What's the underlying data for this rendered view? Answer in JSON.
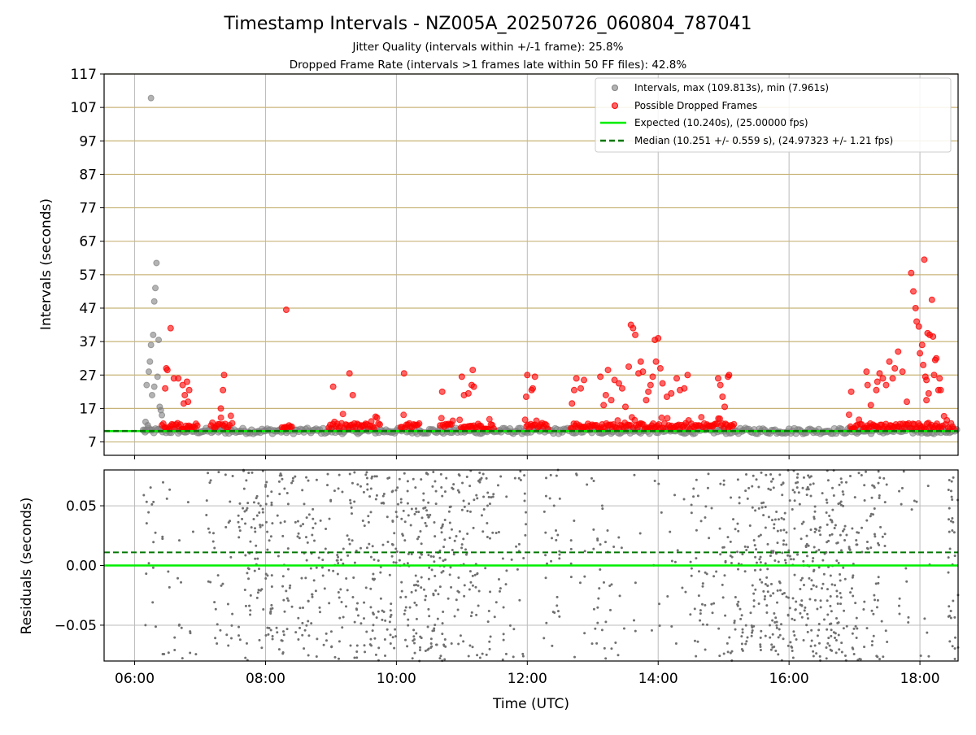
{
  "title": "Timestamp Intervals - NZ005A_20250726_060804_787041",
  "subtitle1": "Jitter Quality (intervals within +/-1 frame): 25.8%",
  "subtitle2": "Dropped Frame Rate (intervals >1 frames late within 50 FF files): 42.8%",
  "colors": {
    "intervals": "#808080",
    "dropped": "#ff0000",
    "expected": "#00ee00",
    "median": "#007700",
    "grid_major": "#c8b478",
    "grid_minor": "#bbbbbb"
  },
  "chart_data": [
    {
      "type": "scatter",
      "ylabel": "Intervals (seconds)",
      "yticks": [
        "7",
        "17",
        "27",
        "37",
        "47",
        "57",
        "67",
        "77",
        "87",
        "97",
        "107",
        "117"
      ],
      "ylim": [
        3,
        117
      ],
      "xlim": [
        "05:32",
        "18:35"
      ],
      "grid": true,
      "legend_position": "top-right",
      "legend": [
        "Intervals, max (109.813s), min (7.961s)",
        "Possible Dropped Frames",
        "Expected (10.240s), (25.00000 fps)",
        "Median (10.251 +/- 0.559 s), (24.97323 +/- 1.21 fps)"
      ],
      "series": [
        {
          "name": "Intervals, max (109.813s), min (7.961s)",
          "points": [
            [
              "06:15",
              109.8
            ],
            [
              "06:20",
              60.5
            ],
            [
              "06:19",
              53.0
            ],
            [
              "06:18",
              49.0
            ],
            [
              "06:17",
              39.0
            ],
            [
              "06:15",
              36.0
            ],
            [
              "06:14",
              31.0
            ],
            [
              "06:11",
              24.0
            ],
            [
              "06:13",
              28.0
            ],
            [
              "06:18",
              23.5
            ],
            [
              "06:16",
              21.0
            ],
            [
              "06:22",
              37.5
            ],
            [
              "06:21",
              26.5
            ],
            [
              "06:23",
              17.5
            ],
            [
              "06:24",
              16.5
            ],
            [
              "06:25",
              15.0
            ],
            [
              "06:10",
              13.0
            ],
            [
              "06:12",
              12.0
            ],
            [
              "06:09",
              10.5
            ]
          ],
          "baseline_segments": [
            [
              "06:08",
              "18:35"
            ]
          ],
          "baseline_value": 10.3
        },
        {
          "name": "Possible Dropped Frames",
          "points": [
            [
              "06:33",
              41.0
            ],
            [
              "06:29",
              29.0
            ],
            [
              "06:30",
              28.5
            ],
            [
              "06:36",
              26.0
            ],
            [
              "06:40",
              26.0
            ],
            [
              "06:44",
              24.0
            ],
            [
              "06:48",
              25.0
            ],
            [
              "06:50",
              22.5
            ],
            [
              "06:46",
              21.0
            ],
            [
              "06:49",
              19.0
            ],
            [
              "06:28",
              23.0
            ],
            [
              "06:45",
              18.5
            ],
            [
              "07:22",
              27.0
            ],
            [
              "07:21",
              22.5
            ],
            [
              "07:19",
              17.0
            ],
            [
              "08:19",
              46.5
            ],
            [
              "09:02",
              23.5
            ],
            [
              "09:17",
              27.5
            ],
            [
              "09:20",
              21.0
            ],
            [
              "10:07",
              27.5
            ],
            [
              "10:42",
              22.0
            ],
            [
              "11:00",
              26.5
            ],
            [
              "11:02",
              21.0
            ],
            [
              "11:06",
              21.5
            ],
            [
              "11:09",
              24.0
            ],
            [
              "11:10",
              28.5
            ],
            [
              "11:11",
              23.5
            ],
            [
              "12:00",
              27.0
            ],
            [
              "12:04",
              22.5
            ],
            [
              "12:05",
              23.0
            ],
            [
              "12:07",
              26.5
            ],
            [
              "11:59",
              20.5
            ],
            [
              "12:41",
              18.5
            ],
            [
              "12:43",
              22.5
            ],
            [
              "12:45",
              26.0
            ],
            [
              "12:49",
              23.0
            ],
            [
              "12:52",
              25.5
            ],
            [
              "13:07",
              26.5
            ],
            [
              "13:10",
              18.0
            ],
            [
              "13:12",
              21.0
            ],
            [
              "13:14",
              28.5
            ],
            [
              "13:17",
              19.5
            ],
            [
              "13:20",
              25.5
            ],
            [
              "13:24",
              24.5
            ],
            [
              "13:27",
              23.0
            ],
            [
              "13:30",
              17.5
            ],
            [
              "13:33",
              29.5
            ],
            [
              "13:35",
              42.0
            ],
            [
              "13:37",
              41.0
            ],
            [
              "13:39",
              39.0
            ],
            [
              "13:42",
              27.5
            ],
            [
              "13:44",
              31.0
            ],
            [
              "13:46",
              28.0
            ],
            [
              "13:49",
              19.5
            ],
            [
              "13:51",
              22.0
            ],
            [
              "13:53",
              24.0
            ],
            [
              "13:55",
              26.5
            ],
            [
              "13:57",
              37.5
            ],
            [
              "13:58",
              31.0
            ],
            [
              "14:00",
              38.0
            ],
            [
              "14:02",
              29.0
            ],
            [
              "14:04",
              24.5
            ],
            [
              "14:08",
              20.5
            ],
            [
              "14:12",
              21.5
            ],
            [
              "14:17",
              26.0
            ],
            [
              "14:20",
              22.5
            ],
            [
              "14:24",
              23.0
            ],
            [
              "14:27",
              27.0
            ],
            [
              "14:55",
              26.0
            ],
            [
              "14:57",
              24.0
            ],
            [
              "14:59",
              20.5
            ],
            [
              "15:01",
              17.5
            ],
            [
              "15:04",
              26.5
            ],
            [
              "15:05",
              27.0
            ],
            [
              "16:57",
              22.0
            ],
            [
              "17:11",
              28.0
            ],
            [
              "17:12",
              24.0
            ],
            [
              "17:15",
              18.0
            ],
            [
              "17:20",
              22.5
            ],
            [
              "17:21",
              25.0
            ],
            [
              "17:23",
              27.5
            ],
            [
              "17:26",
              26.0
            ],
            [
              "17:29",
              24.0
            ],
            [
              "17:32",
              31.0
            ],
            [
              "17:35",
              26.0
            ],
            [
              "17:37",
              29.0
            ],
            [
              "17:40",
              34.0
            ],
            [
              "17:44",
              28.0
            ],
            [
              "17:48",
              19.0
            ],
            [
              "17:52",
              57.5
            ],
            [
              "17:54",
              52.0
            ],
            [
              "17:56",
              47.0
            ],
            [
              "17:57",
              43.0
            ],
            [
              "17:59",
              41.5
            ],
            [
              "18:00",
              33.5
            ],
            [
              "18:02",
              36.0
            ],
            [
              "18:03",
              30.0
            ],
            [
              "18:04",
              61.5
            ],
            [
              "18:05",
              26.5
            ],
            [
              "18:06",
              25.5
            ],
            [
              "18:07",
              39.5
            ],
            [
              "18:09",
              39.0
            ],
            [
              "18:11",
              49.5
            ],
            [
              "18:12",
              38.5
            ],
            [
              "18:14",
              31.5
            ],
            [
              "18:15",
              32.0
            ],
            [
              "18:17",
              22.5
            ],
            [
              "18:18",
              26.0
            ],
            [
              "18:19",
              22.5
            ],
            [
              "18:13",
              27.0
            ],
            [
              "18:08",
              21.5
            ],
            [
              "18:06",
              19.5
            ]
          ],
          "cluster_ranges": [
            [
              "06:25",
              "06:58"
            ],
            [
              "07:10",
              "07:30"
            ],
            [
              "08:15",
              "08:25"
            ],
            [
              "08:58",
              "09:45"
            ],
            [
              "10:04",
              "10:22"
            ],
            [
              "10:40",
              "10:52"
            ],
            [
              "10:58",
              "11:30"
            ],
            [
              "11:58",
              "12:20"
            ],
            [
              "12:40",
              "15:10"
            ],
            [
              "16:55",
              "18:32"
            ]
          ]
        }
      ],
      "expected": 10.24,
      "median": 10.251
    },
    {
      "type": "scatter",
      "xlabel": "Time (UTC)",
      "ylabel": "Residuals (seconds)",
      "xticks": [
        "06:00",
        "08:00",
        "10:00",
        "12:00",
        "14:00",
        "16:00",
        "18:00"
      ],
      "yticks": [
        "0.05",
        "0.00",
        "−0.05"
      ],
      "ylim": [
        -0.08,
        0.08
      ],
      "expected_residual": 0.0,
      "median_residual": 0.011,
      "density_bands": [
        [
          "06:08",
          "06:20",
          15
        ],
        [
          "06:25",
          "06:58",
          25
        ],
        [
          "07:05",
          "07:30",
          35
        ],
        [
          "07:35",
          "08:00",
          70
        ],
        [
          "08:00",
          "08:45",
          120
        ],
        [
          "08:45",
          "09:30",
          90
        ],
        [
          "09:30",
          "10:45",
          260
        ],
        [
          "10:45",
          "11:30",
          110
        ],
        [
          "11:30",
          "12:00",
          40
        ],
        [
          "12:15",
          "12:30",
          30
        ],
        [
          "12:40",
          "13:30",
          50
        ],
        [
          "13:35",
          "14:30",
          25
        ],
        [
          "14:30",
          "15:10",
          70
        ],
        [
          "15:10",
          "15:30",
          60
        ],
        [
          "15:30",
          "16:50",
          330
        ],
        [
          "16:50",
          "17:30",
          100
        ],
        [
          "17:40",
          "18:10",
          20
        ],
        [
          "18:25",
          "18:35",
          35
        ]
      ]
    }
  ]
}
